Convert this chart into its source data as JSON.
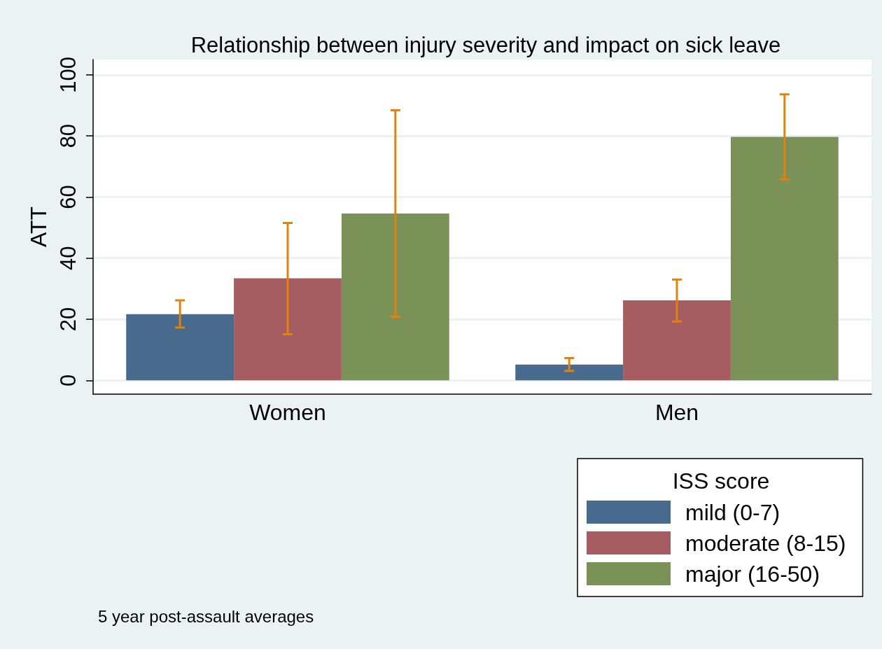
{
  "chart_data": {
    "type": "bar",
    "title": "Relationship between injury severity and impact on sick leave",
    "ylabel": "ATT",
    "categories": [
      "Women",
      "Men"
    ],
    "series": [
      {
        "name": "mild (0-7)",
        "color": "#486a8c",
        "values": [
          21.7,
          5.2
        ],
        "errors": [
          [
            17.3,
            26.2
          ],
          [
            3.1,
            7.3
          ]
        ]
      },
      {
        "name": "moderate (8-15)",
        "color": "#a65d62",
        "values": [
          33.4,
          26.2
        ],
        "errors": [
          [
            15.1,
            51.5
          ],
          [
            19.3,
            33.0
          ]
        ]
      },
      {
        "name": "major (16-50)",
        "color": "#7a9157",
        "values": [
          54.6,
          79.7
        ],
        "errors": [
          [
            20.8,
            88.4
          ],
          [
            65.8,
            93.6
          ]
        ]
      }
    ],
    "ylim": [
      -4.5,
      105
    ],
    "yticks": [
      0,
      20,
      40,
      60,
      80,
      100
    ],
    "grid": "y",
    "legend": "bottom right",
    "legend_title": "ISS score",
    "annotations": [
      "5 year post-assault averages"
    ]
  }
}
